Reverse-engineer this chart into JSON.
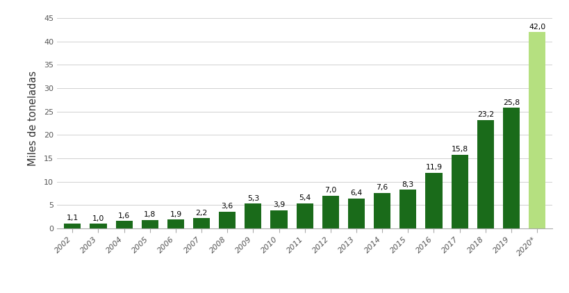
{
  "categories": [
    "2002",
    "2003",
    "2004",
    "2005",
    "2006",
    "2007",
    "2008",
    "2009",
    "2010",
    "2011",
    "2012",
    "2013",
    "2014",
    "2015",
    "2016",
    "2017",
    "2018",
    "2019",
    "2020*"
  ],
  "values": [
    1.1,
    1.0,
    1.6,
    1.8,
    1.9,
    2.2,
    3.6,
    5.3,
    3.9,
    5.4,
    7.0,
    6.4,
    7.6,
    8.3,
    11.9,
    15.8,
    23.2,
    25.8,
    42.0
  ],
  "bar_colors": [
    "#1a6b1a",
    "#1a6b1a",
    "#1a6b1a",
    "#1a6b1a",
    "#1a6b1a",
    "#1a6b1a",
    "#1a6b1a",
    "#1a6b1a",
    "#1a6b1a",
    "#1a6b1a",
    "#1a6b1a",
    "#1a6b1a",
    "#1a6b1a",
    "#1a6b1a",
    "#1a6b1a",
    "#1a6b1a",
    "#1a6b1a",
    "#1a6b1a",
    "#b5e080"
  ],
  "labels": [
    "1,1",
    "1,0",
    "1,6",
    "1,8",
    "1,9",
    "2,2",
    "3,6",
    "5,3",
    "3,9",
    "5,4",
    "7,0",
    "6,4",
    "7,6",
    "8,3",
    "11,9",
    "15,8",
    "23,2",
    "25,8",
    "42,0"
  ],
  "ylabel": "Miles de toneladas",
  "ylim": [
    0,
    47
  ],
  "yticks": [
    0,
    5,
    10,
    15,
    20,
    25,
    30,
    35,
    40,
    45
  ],
  "background_color": "#ffffff",
  "grid_color": "#d0d0d0",
  "label_fontsize": 7.8,
  "ylabel_fontsize": 10.5,
  "tick_fontsize": 8.0,
  "bar_width": 0.65
}
